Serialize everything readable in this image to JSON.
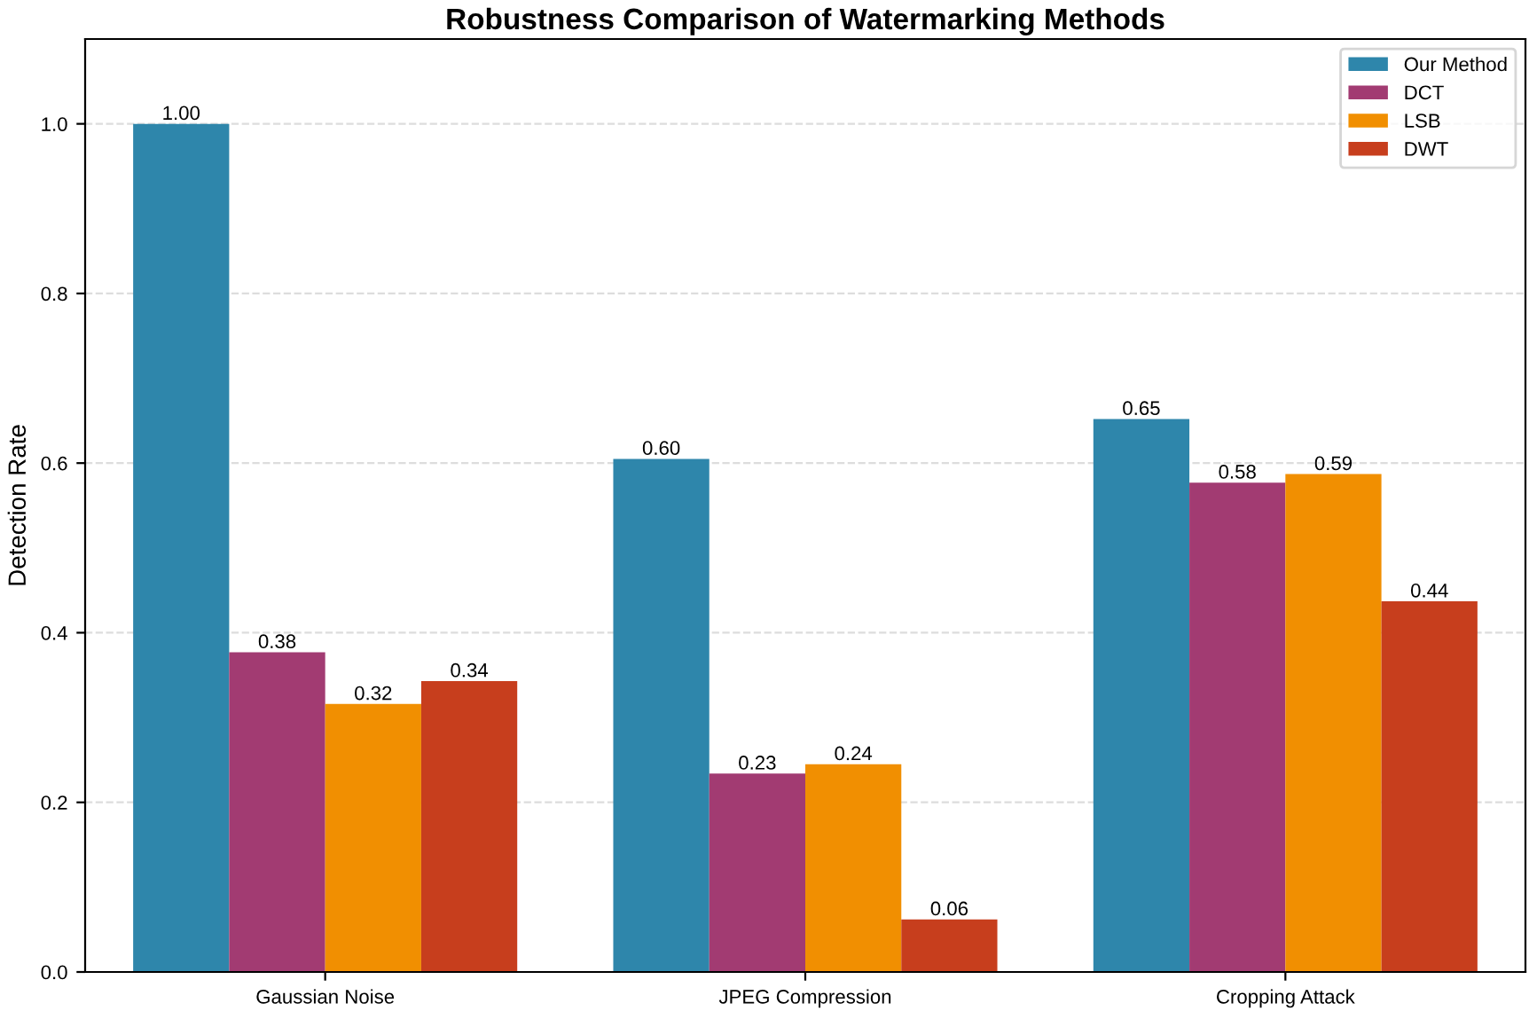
{
  "chart_data": {
    "type": "bar",
    "title": "Robustness Comparison of Watermarking Methods",
    "ylabel": "Detection Rate",
    "categories": [
      "Gaussian Noise",
      "JPEG Compression",
      "Cropping Attack"
    ],
    "series": [
      {
        "name": "Our Method",
        "color": "#2e86ab",
        "values": [
          1.0,
          0.605,
          0.652
        ],
        "value_labels": [
          "1.00",
          "0.60",
          "0.65"
        ]
      },
      {
        "name": "DCT",
        "color": "#a23b72",
        "values": [
          0.377,
          0.234,
          0.577
        ],
        "value_labels": [
          "0.38",
          "0.23",
          "0.58"
        ]
      },
      {
        "name": "LSB",
        "color": "#f18f01",
        "values": [
          0.316,
          0.245,
          0.587
        ],
        "value_labels": [
          "0.32",
          "0.24",
          "0.59"
        ]
      },
      {
        "name": "DWT",
        "color": "#c73e1d",
        "values": [
          0.343,
          0.062,
          0.437
        ],
        "value_labels": [
          "0.34",
          "0.06",
          "0.44"
        ]
      }
    ],
    "ylim": [
      0,
      1.1
    ],
    "yticks": [
      "0.0",
      "0.2",
      "0.4",
      "0.6",
      "0.8",
      "1.0"
    ],
    "grid": "y",
    "legend": "top right"
  }
}
